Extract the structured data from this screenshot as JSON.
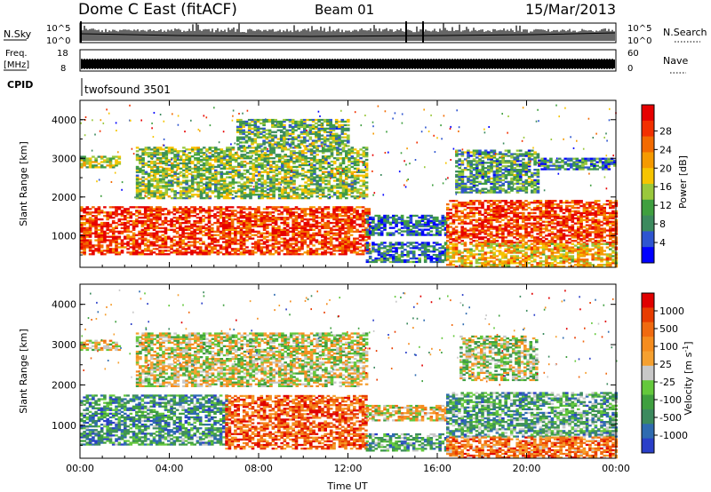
{
  "header": {
    "station": "Dome C East (fitACF)",
    "beam": "Beam 01",
    "date": "15/Mar/2013"
  },
  "strip_panels": {
    "nsky": {
      "label": "N.Sky",
      "ticks": [
        "10^5",
        "10^0"
      ]
    },
    "nsearch": {
      "label": "N.Search",
      "ticks": [
        "10^5",
        "10^0"
      ]
    },
    "freq": {
      "label_line1": "Freq.",
      "label_line2": "[MHz]",
      "ticks": [
        "18",
        "8"
      ]
    },
    "nave": {
      "label": "Nave",
      "ticks": [
        "60",
        "0"
      ]
    },
    "cpid": {
      "label": "CPID",
      "value": "twofsound 3501"
    }
  },
  "chart_data": [
    {
      "type": "heatmap",
      "name": "power",
      "ylabel": "Slant Range [km]",
      "xlabel": "",
      "xlim": [
        0,
        24
      ],
      "ylim": [
        180,
        4500
      ],
      "ytick_labels": [
        "1000",
        "2000",
        "3000",
        "4000"
      ],
      "ytick_values": [
        1000,
        2000,
        3000,
        4000
      ],
      "colorbar": {
        "label": "Power [dB]",
        "ticks": [
          "4",
          "8",
          "12",
          "16",
          "20",
          "24",
          "28"
        ],
        "colors": [
          "#0000ff",
          "#2e55d0",
          "#3c8a5e",
          "#3f9f3f",
          "#9ac83c",
          "#f6c400",
          "#f59a00",
          "#f26a00",
          "#f23000",
          "#e60000"
        ]
      },
      "regions": [
        {
          "t0": 0.0,
          "t1": 12.9,
          "r0": 500,
          "r1": 1750,
          "level": 0.85
        },
        {
          "t0": 0.0,
          "t1": 1.7,
          "r0": 2750,
          "r1": 3050,
          "level": 0.45
        },
        {
          "t0": 2.5,
          "t1": 12.8,
          "r0": 1950,
          "r1": 3300,
          "level": 0.4
        },
        {
          "t0": 7.0,
          "t1": 12.0,
          "r0": 3300,
          "r1": 4000,
          "level": 0.35
        },
        {
          "t0": 12.8,
          "t1": 16.4,
          "r0": 1000,
          "r1": 1500,
          "level": 0.18
        },
        {
          "t0": 12.8,
          "t1": 16.4,
          "r0": 300,
          "r1": 800,
          "level": 0.22
        },
        {
          "t0": 16.4,
          "t1": 24.0,
          "r0": 800,
          "r1": 1900,
          "level": 0.85
        },
        {
          "t0": 16.4,
          "t1": 24.0,
          "r0": 180,
          "r1": 800,
          "level": 0.6
        },
        {
          "t0": 16.8,
          "t1": 20.5,
          "r0": 2100,
          "r1": 3200,
          "level": 0.3
        },
        {
          "t0": 20.5,
          "t1": 24.0,
          "r0": 2700,
          "r1": 3000,
          "level": 0.25
        }
      ]
    },
    {
      "type": "heatmap",
      "name": "velocity",
      "ylabel": "Slant Range [km]",
      "xlabel": "Time UT",
      "xlim": [
        0,
        24
      ],
      "ylim": [
        180,
        4500
      ],
      "xtick_labels": [
        "00:00",
        "04:00",
        "08:00",
        "12:00",
        "16:00",
        "20:00",
        "00:00"
      ],
      "xtick_values": [
        0,
        4,
        8,
        12,
        16,
        20,
        24
      ],
      "ytick_labels": [
        "1000",
        "2000",
        "3000",
        "4000"
      ],
      "ytick_values": [
        1000,
        2000,
        3000,
        4000
      ],
      "colorbar": {
        "label": "Velocity [m s",
        "label_sup": "-1",
        "label_end": "]",
        "ticks": [
          "1000",
          "500",
          "100",
          "25",
          "-25",
          "-100",
          "-500",
          "-1000"
        ],
        "colors": [
          "#2a3fc8",
          "#2f6bb0",
          "#3c8a5e",
          "#3f9f3f",
          "#64c83c",
          "#c8c8c8",
          "#f5a030",
          "#f58c1e",
          "#f06a10",
          "#e83c00",
          "#e00000"
        ]
      },
      "regions": [
        {
          "t0": 0.0,
          "t1": 1.7,
          "r0": 2850,
          "r1": 3100,
          "level": 0.55
        },
        {
          "t0": 0.0,
          "t1": 6.5,
          "r0": 500,
          "r1": 1750,
          "level": 0.25
        },
        {
          "t0": 6.5,
          "t1": 12.8,
          "r0": 400,
          "r1": 1750,
          "level": 0.8
        },
        {
          "t0": 2.5,
          "t1": 12.8,
          "r0": 1950,
          "r1": 3300,
          "level": 0.5
        },
        {
          "t0": 12.8,
          "t1": 16.4,
          "r0": 350,
          "r1": 800,
          "level": 0.3
        },
        {
          "t0": 12.8,
          "t1": 16.4,
          "r0": 1100,
          "r1": 1500,
          "level": 0.55
        },
        {
          "t0": 16.4,
          "t1": 24.0,
          "r0": 700,
          "r1": 1800,
          "level": 0.3
        },
        {
          "t0": 16.4,
          "t1": 24.0,
          "r0": 180,
          "r1": 700,
          "level": 0.75
        },
        {
          "t0": 17.0,
          "t1": 20.5,
          "r0": 2100,
          "r1": 3200,
          "level": 0.45
        }
      ]
    }
  ]
}
